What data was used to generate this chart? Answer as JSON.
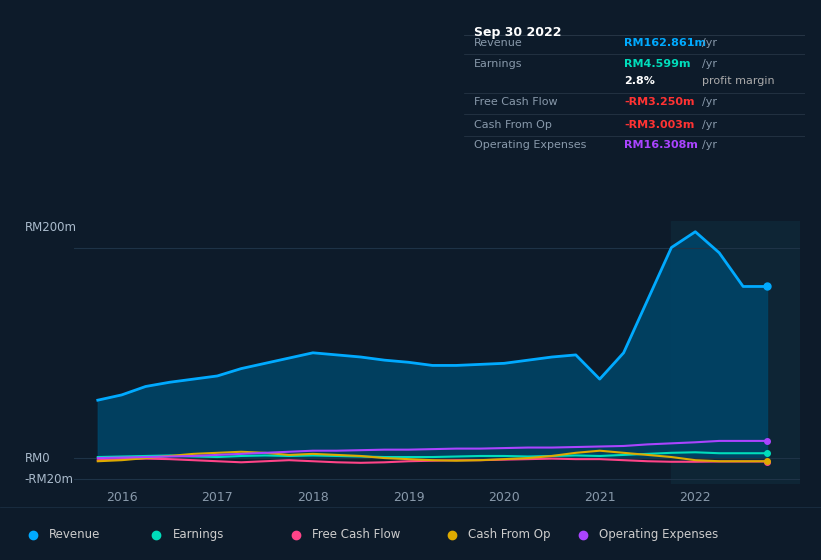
{
  "bg_color": "#0d1b2a",
  "chart_bg": "#0d1b2a",
  "text_color": "#8899aa",
  "ylabel_color": "#aabbcc",
  "series": {
    "Revenue": {
      "color": "#00aaff",
      "fill_color": "#004466",
      "x": [
        2015.75,
        2016.0,
        2016.25,
        2016.5,
        2016.75,
        2017.0,
        2017.25,
        2017.5,
        2017.75,
        2018.0,
        2018.25,
        2018.5,
        2018.75,
        2019.0,
        2019.25,
        2019.5,
        2019.75,
        2020.0,
        2020.25,
        2020.5,
        2020.75,
        2021.0,
        2021.25,
        2021.5,
        2021.75,
        2022.0,
        2022.25,
        2022.5,
        2022.75
      ],
      "y": [
        55,
        60,
        68,
        72,
        75,
        78,
        85,
        90,
        95,
        100,
        98,
        96,
        93,
        91,
        88,
        88,
        89,
        90,
        93,
        96,
        98,
        75,
        100,
        150,
        200,
        215,
        195,
        163,
        163
      ]
    },
    "Earnings": {
      "color": "#00ddbb",
      "x": [
        2015.75,
        2016.0,
        2016.25,
        2016.5,
        2016.75,
        2017.0,
        2017.25,
        2017.5,
        2017.75,
        2018.0,
        2018.25,
        2018.5,
        2018.75,
        2019.0,
        2019.25,
        2019.5,
        2019.75,
        2020.0,
        2020.25,
        2020.5,
        2020.75,
        2021.0,
        2021.25,
        2021.5,
        2021.75,
        2022.0,
        2022.25,
        2022.5,
        2022.75
      ],
      "y": [
        1,
        1.5,
        2,
        2.5,
        1.5,
        1,
        2,
        2.5,
        2,
        2.5,
        2,
        1.5,
        1,
        1,
        1,
        1.5,
        2,
        2,
        1.5,
        2,
        2.5,
        2,
        3,
        4,
        5,
        5.5,
        4.6,
        4.6,
        4.6
      ]
    },
    "Free Cash Flow": {
      "color": "#ff4488",
      "x": [
        2015.75,
        2016.0,
        2016.25,
        2016.5,
        2016.75,
        2017.0,
        2017.25,
        2017.5,
        2017.75,
        2018.0,
        2018.25,
        2018.5,
        2018.75,
        2019.0,
        2019.25,
        2019.5,
        2019.75,
        2020.0,
        2020.25,
        2020.5,
        2020.75,
        2021.0,
        2021.25,
        2021.5,
        2021.75,
        2022.0,
        2022.25,
        2022.5,
        2022.75
      ],
      "y": [
        -2,
        -1,
        -0.5,
        -1,
        -2,
        -3,
        -4,
        -3,
        -2,
        -3,
        -4,
        -4.5,
        -4,
        -3,
        -2.5,
        -2,
        -2,
        -1.5,
        -1,
        -0.5,
        -1,
        -1,
        -2,
        -3,
        -3.5,
        -3.5,
        -3.25,
        -3.25,
        -3.25
      ]
    },
    "Cash From Op": {
      "color": "#ddaa00",
      "x": [
        2015.75,
        2016.0,
        2016.25,
        2016.5,
        2016.75,
        2017.0,
        2017.25,
        2017.5,
        2017.75,
        2018.0,
        2018.25,
        2018.5,
        2018.75,
        2019.0,
        2019.25,
        2019.5,
        2019.75,
        2020.0,
        2020.25,
        2020.5,
        2020.75,
        2021.0,
        2021.25,
        2021.5,
        2021.75,
        2022.0,
        2022.25,
        2022.5,
        2022.75
      ],
      "y": [
        -3,
        -2,
        0,
        2,
        4,
        5,
        6,
        5,
        3,
        4,
        3,
        2,
        0,
        -1,
        -2,
        -2.5,
        -2,
        -1,
        0,
        2,
        5,
        7,
        5,
        3,
        1,
        -2,
        -3,
        -3,
        -3
      ]
    },
    "Operating Expenses": {
      "color": "#aa44ff",
      "x": [
        2015.75,
        2016.0,
        2016.25,
        2016.5,
        2016.75,
        2017.0,
        2017.25,
        2017.5,
        2017.75,
        2018.0,
        2018.25,
        2018.5,
        2018.75,
        2019.0,
        2019.25,
        2019.5,
        2019.75,
        2020.0,
        2020.25,
        2020.5,
        2020.75,
        2021.0,
        2021.25,
        2021.5,
        2021.75,
        2022.0,
        2022.25,
        2022.5,
        2022.75
      ],
      "y": [
        0,
        0.5,
        1,
        1.5,
        2,
        3,
        4,
        5,
        6,
        7,
        7,
        7.5,
        8,
        8,
        8.5,
        9,
        9,
        9.5,
        10,
        10,
        10.5,
        11,
        11.5,
        13,
        14,
        15,
        16.3,
        16.3,
        16.3
      ]
    }
  },
  "info_box": {
    "title": "Sep 30 2022",
    "rows": [
      {
        "label": "Revenue",
        "value": "RM162.861m",
        "unit": "/yr",
        "value_color": "#00aaff",
        "label_color": "#8899aa"
      },
      {
        "label": "Earnings",
        "value": "RM4.599m",
        "unit": "/yr",
        "value_color": "#00ddbb",
        "label_color": "#8899aa"
      },
      {
        "label": "",
        "value": "2.8%",
        "unit": "profit margin",
        "value_color": "#ffffff",
        "unit_color": "#aaaaaa",
        "label_color": ""
      },
      {
        "label": "Free Cash Flow",
        "value": "-RM3.250m",
        "unit": "/yr",
        "value_color": "#ff3333",
        "label_color": "#8899aa"
      },
      {
        "label": "Cash From Op",
        "value": "-RM3.003m",
        "unit": "/yr",
        "value_color": "#ff3333",
        "label_color": "#8899aa"
      },
      {
        "label": "Operating Expenses",
        "value": "RM16.308m",
        "unit": "/yr",
        "value_color": "#aa44ff",
        "label_color": "#8899aa"
      }
    ]
  },
  "highlight_x_start": 2021.75,
  "xlim": [
    2015.5,
    2023.1
  ],
  "ylim": [
    -25,
    225
  ],
  "xticks": [
    2016,
    2017,
    2018,
    2019,
    2020,
    2021,
    2022
  ],
  "xtick_labels": [
    "2016",
    "2017",
    "2018",
    "2019",
    "2020",
    "2021",
    "2022"
  ],
  "legend": [
    {
      "label": "Revenue",
      "color": "#00aaff"
    },
    {
      "label": "Earnings",
      "color": "#00ddbb"
    },
    {
      "label": "Free Cash Flow",
      "color": "#ff4488"
    },
    {
      "label": "Cash From Op",
      "color": "#ddaa00"
    },
    {
      "label": "Operating Expenses",
      "color": "#aa44ff"
    }
  ]
}
